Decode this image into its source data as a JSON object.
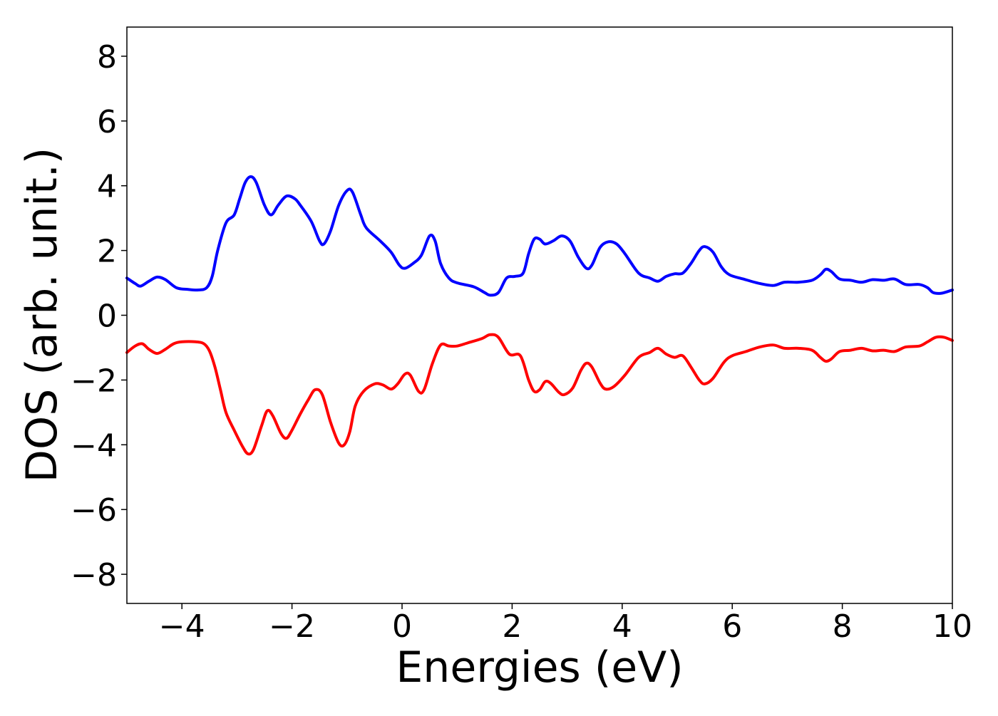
{
  "chart_data": {
    "type": "line",
    "title": "",
    "xlabel": "Energies (eV)",
    "ylabel": "DOS (arb. unit.)",
    "xlim": [
      -5,
      10
    ],
    "ylim": [
      -8.9,
      8.9
    ],
    "x_ticks": [
      -4,
      -2,
      0,
      2,
      4,
      6,
      8,
      10
    ],
    "x_tick_labels": [
      "−4",
      "−2",
      "0",
      "2",
      "4",
      "6",
      "8",
      "10"
    ],
    "y_ticks": [
      8,
      6,
      4,
      2,
      0,
      -2,
      -4,
      -6,
      -8
    ],
    "y_tick_labels": [
      "8",
      "6",
      "4",
      "2",
      "0",
      "−2",
      "−4",
      "−6",
      "−8"
    ],
    "grid": false,
    "legend": "none",
    "series": [
      {
        "color": "#0000ff",
        "points": [
          [
            -5.0,
            1.15
          ],
          [
            -4.85,
            0.98
          ],
          [
            -4.75,
            0.9
          ],
          [
            -4.6,
            1.05
          ],
          [
            -4.45,
            1.18
          ],
          [
            -4.3,
            1.1
          ],
          [
            -4.1,
            0.85
          ],
          [
            -3.9,
            0.8
          ],
          [
            -3.7,
            0.78
          ],
          [
            -3.55,
            0.85
          ],
          [
            -3.45,
            1.2
          ],
          [
            -3.35,
            2.0
          ],
          [
            -3.2,
            2.85
          ],
          [
            -3.05,
            3.1
          ],
          [
            -2.95,
            3.6
          ],
          [
            -2.85,
            4.1
          ],
          [
            -2.75,
            4.28
          ],
          [
            -2.65,
            4.1
          ],
          [
            -2.5,
            3.4
          ],
          [
            -2.38,
            3.1
          ],
          [
            -2.25,
            3.4
          ],
          [
            -2.1,
            3.68
          ],
          [
            -1.95,
            3.6
          ],
          [
            -1.85,
            3.4
          ],
          [
            -1.65,
            2.9
          ],
          [
            -1.5,
            2.3
          ],
          [
            -1.42,
            2.2
          ],
          [
            -1.3,
            2.6
          ],
          [
            -1.15,
            3.4
          ],
          [
            -1.0,
            3.85
          ],
          [
            -0.9,
            3.8
          ],
          [
            -0.75,
            3.1
          ],
          [
            -0.65,
            2.7
          ],
          [
            -0.4,
            2.3
          ],
          [
            -0.2,
            1.95
          ],
          [
            -0.05,
            1.55
          ],
          [
            0.05,
            1.45
          ],
          [
            0.2,
            1.6
          ],
          [
            0.35,
            1.85
          ],
          [
            0.5,
            2.45
          ],
          [
            0.6,
            2.3
          ],
          [
            0.7,
            1.6
          ],
          [
            0.85,
            1.15
          ],
          [
            1.0,
            1.0
          ],
          [
            1.3,
            0.88
          ],
          [
            1.5,
            0.7
          ],
          [
            1.6,
            0.62
          ],
          [
            1.75,
            0.7
          ],
          [
            1.9,
            1.15
          ],
          [
            2.05,
            1.2
          ],
          [
            2.2,
            1.3
          ],
          [
            2.3,
            1.9
          ],
          [
            2.4,
            2.35
          ],
          [
            2.5,
            2.35
          ],
          [
            2.6,
            2.2
          ],
          [
            2.75,
            2.3
          ],
          [
            2.9,
            2.45
          ],
          [
            3.05,
            2.3
          ],
          [
            3.2,
            1.8
          ],
          [
            3.35,
            1.45
          ],
          [
            3.45,
            1.55
          ],
          [
            3.6,
            2.1
          ],
          [
            3.75,
            2.27
          ],
          [
            3.9,
            2.2
          ],
          [
            4.05,
            1.9
          ],
          [
            4.3,
            1.3
          ],
          [
            4.5,
            1.15
          ],
          [
            4.65,
            1.05
          ],
          [
            4.8,
            1.2
          ],
          [
            4.95,
            1.28
          ],
          [
            5.1,
            1.3
          ],
          [
            5.25,
            1.6
          ],
          [
            5.4,
            2.0
          ],
          [
            5.5,
            2.12
          ],
          [
            5.65,
            1.95
          ],
          [
            5.8,
            1.5
          ],
          [
            5.95,
            1.25
          ],
          [
            6.2,
            1.12
          ],
          [
            6.5,
            0.98
          ],
          [
            6.75,
            0.92
          ],
          [
            6.95,
            1.02
          ],
          [
            7.2,
            1.02
          ],
          [
            7.45,
            1.08
          ],
          [
            7.6,
            1.25
          ],
          [
            7.7,
            1.42
          ],
          [
            7.8,
            1.35
          ],
          [
            7.95,
            1.12
          ],
          [
            8.15,
            1.08
          ],
          [
            8.35,
            1.02
          ],
          [
            8.55,
            1.1
          ],
          [
            8.75,
            1.08
          ],
          [
            8.95,
            1.12
          ],
          [
            9.15,
            0.95
          ],
          [
            9.4,
            0.95
          ],
          [
            9.55,
            0.85
          ],
          [
            9.65,
            0.7
          ],
          [
            9.8,
            0.68
          ],
          [
            10.0,
            0.78
          ]
        ]
      },
      {
        "color": "#ff0000",
        "points": [
          [
            -5.0,
            -1.15
          ],
          [
            -4.85,
            -0.95
          ],
          [
            -4.72,
            -0.88
          ],
          [
            -4.6,
            -1.05
          ],
          [
            -4.45,
            -1.18
          ],
          [
            -4.3,
            -1.05
          ],
          [
            -4.15,
            -0.88
          ],
          [
            -4.0,
            -0.82
          ],
          [
            -3.75,
            -0.82
          ],
          [
            -3.6,
            -0.88
          ],
          [
            -3.5,
            -1.1
          ],
          [
            -3.4,
            -1.6
          ],
          [
            -3.3,
            -2.3
          ],
          [
            -3.2,
            -3.0
          ],
          [
            -3.05,
            -3.55
          ],
          [
            -2.9,
            -4.05
          ],
          [
            -2.8,
            -4.28
          ],
          [
            -2.7,
            -4.15
          ],
          [
            -2.55,
            -3.4
          ],
          [
            -2.45,
            -2.95
          ],
          [
            -2.35,
            -3.1
          ],
          [
            -2.2,
            -3.65
          ],
          [
            -2.1,
            -3.8
          ],
          [
            -2.0,
            -3.55
          ],
          [
            -1.85,
            -3.05
          ],
          [
            -1.7,
            -2.6
          ],
          [
            -1.58,
            -2.3
          ],
          [
            -1.45,
            -2.45
          ],
          [
            -1.3,
            -3.3
          ],
          [
            -1.15,
            -3.95
          ],
          [
            -1.05,
            -4.0
          ],
          [
            -0.95,
            -3.6
          ],
          [
            -0.85,
            -2.8
          ],
          [
            -0.7,
            -2.35
          ],
          [
            -0.5,
            -2.12
          ],
          [
            -0.35,
            -2.15
          ],
          [
            -0.2,
            -2.28
          ],
          [
            -0.08,
            -2.12
          ],
          [
            0.05,
            -1.82
          ],
          [
            0.15,
            -1.85
          ],
          [
            0.3,
            -2.35
          ],
          [
            0.4,
            -2.3
          ],
          [
            0.55,
            -1.5
          ],
          [
            0.7,
            -0.92
          ],
          [
            0.85,
            -0.95
          ],
          [
            1.0,
            -0.95
          ],
          [
            1.2,
            -0.85
          ],
          [
            1.45,
            -0.72
          ],
          [
            1.6,
            -0.6
          ],
          [
            1.75,
            -0.68
          ],
          [
            1.95,
            -1.2
          ],
          [
            2.15,
            -1.25
          ],
          [
            2.3,
            -2.0
          ],
          [
            2.4,
            -2.35
          ],
          [
            2.5,
            -2.3
          ],
          [
            2.6,
            -2.05
          ],
          [
            2.7,
            -2.1
          ],
          [
            2.85,
            -2.38
          ],
          [
            2.95,
            -2.45
          ],
          [
            3.1,
            -2.25
          ],
          [
            3.25,
            -1.7
          ],
          [
            3.35,
            -1.48
          ],
          [
            3.45,
            -1.6
          ],
          [
            3.6,
            -2.1
          ],
          [
            3.7,
            -2.28
          ],
          [
            3.85,
            -2.2
          ],
          [
            4.05,
            -1.85
          ],
          [
            4.3,
            -1.3
          ],
          [
            4.5,
            -1.15
          ],
          [
            4.65,
            -1.02
          ],
          [
            4.8,
            -1.2
          ],
          [
            4.95,
            -1.3
          ],
          [
            5.1,
            -1.25
          ],
          [
            5.25,
            -1.6
          ],
          [
            5.4,
            -2.0
          ],
          [
            5.5,
            -2.12
          ],
          [
            5.65,
            -1.95
          ],
          [
            5.85,
            -1.45
          ],
          [
            6.0,
            -1.25
          ],
          [
            6.25,
            -1.12
          ],
          [
            6.5,
            -0.98
          ],
          [
            6.75,
            -0.92
          ],
          [
            6.95,
            -1.02
          ],
          [
            7.2,
            -1.02
          ],
          [
            7.45,
            -1.08
          ],
          [
            7.6,
            -1.3
          ],
          [
            7.7,
            -1.42
          ],
          [
            7.8,
            -1.35
          ],
          [
            7.95,
            -1.12
          ],
          [
            8.15,
            -1.08
          ],
          [
            8.35,
            -1.02
          ],
          [
            8.55,
            -1.1
          ],
          [
            8.75,
            -1.08
          ],
          [
            8.95,
            -1.12
          ],
          [
            9.15,
            -0.98
          ],
          [
            9.4,
            -0.95
          ],
          [
            9.55,
            -0.82
          ],
          [
            9.7,
            -0.68
          ],
          [
            9.85,
            -0.68
          ],
          [
            10.0,
            -0.78
          ]
        ]
      }
    ]
  }
}
